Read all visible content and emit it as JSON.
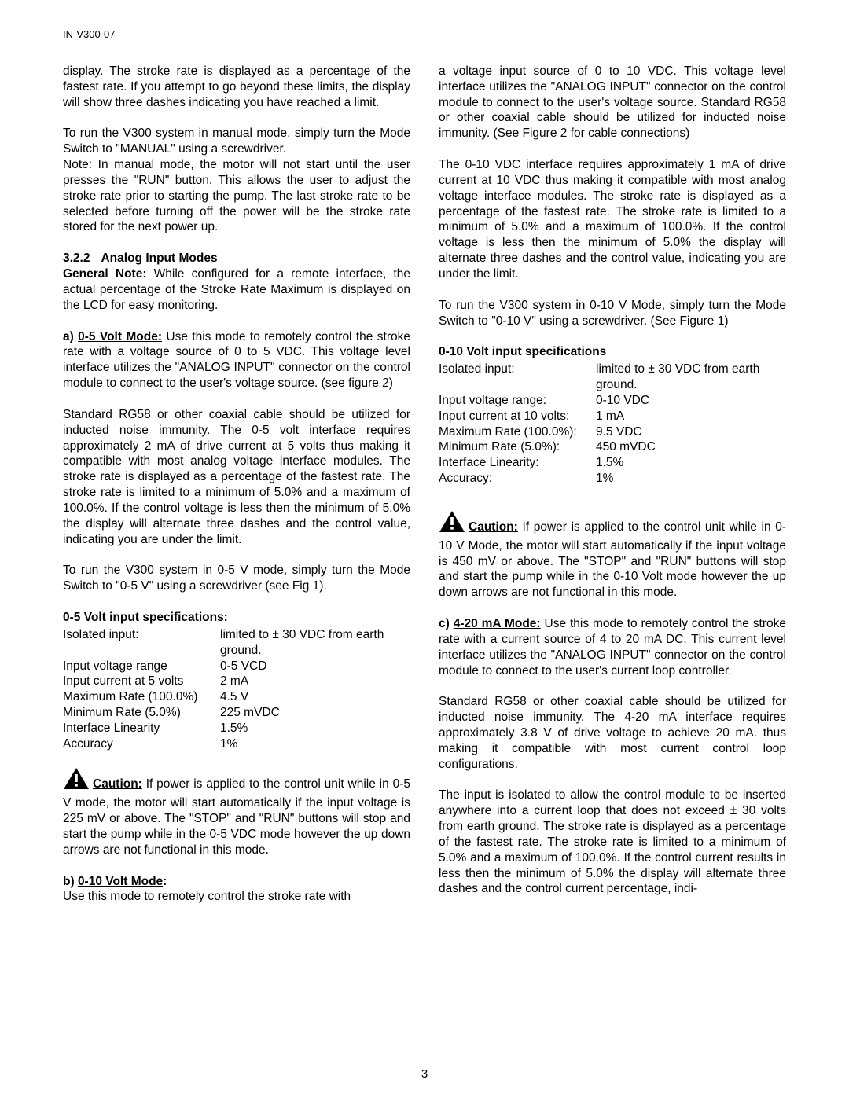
{
  "docId": "IN-V300-07",
  "pageNumber": "3",
  "left": {
    "p1": "display.  The stroke rate is displayed as a percentage of the fastest rate.  If you attempt to go beyond these limits, the display will show three dashes indicating you have reached a limit.",
    "p2": "To run the V300 system in manual mode, simply turn the Mode Switch to \"MANUAL\" using a screwdriver.",
    "p3": "Note: In manual mode, the motor will not start until the user presses the \"RUN\" button.  This allows the user to adjust the stroke rate prior to starting the pump.  The last stroke rate to be selected before turning off the power will be the stroke rate stored for the next power up.",
    "secNum": "3.2.2",
    "secTitle": "Analog Input Modes",
    "generalLabel": "General Note:",
    "generalText": "  While configured for a remote interface, the actual percentage of the Stroke Rate Maximum is displayed on the LCD for easy monitoring.",
    "aLabel": "a) ",
    "aMode": "0-5 Volt Mode:",
    "aText": " Use this mode  to remotely control the stroke rate with a voltage source of 0 to 5 VDC.  This voltage level interface utilizes the \"ANALOG INPUT\" connector on the control module to connect to the user's voltage source. (see figure 2)",
    "p4": "Standard RG58 or other coaxial cable should be utilized for inducted noise immunity.  The 0-5 volt interface requires approximately 2 mA of drive current at 5 volts thus making it compatible with most analog voltage interface modules.  The stroke rate is displayed as a percentage of the fastest rate.  The stroke rate is limited to a minimum of 5.0% and a maximum of 100.0%.  If the control voltage is less then the minimum of 5.0% the display will alternate three dashes and the control value, indicating you are under the limit.",
    "p5": "To run the V300 system in 0-5 V mode, simply turn the Mode Switch to \"0-5 V\" using a screwdriver (see Fig 1).",
    "spec5Title": "0-5 Volt input specifications:",
    "spec5": [
      {
        "l": "Isolated input:",
        "v": "limited to ± 30 VDC from earth ground."
      },
      {
        "l": "Input voltage range",
        "v": "0-5 VCD"
      },
      {
        "l": "Input current at 5 volts",
        "v": "2 mA"
      },
      {
        "l": "Maximum Rate (100.0%)",
        "v": "4.5 V"
      },
      {
        "l": "Minimum Rate (5.0%)",
        "v": "225 mVDC"
      },
      {
        "l": "Interface Linearity",
        "v": "1.5%"
      },
      {
        "l": "Accuracy",
        "v": "1%"
      }
    ],
    "caution1Label": "Caution:",
    "caution1Text": "   If power is applied to the control unit while in 0-5 V mode, the motor will start automatically if the input voltage is 225 mV or above. The \"STOP\" and \"RUN\" buttons will stop and start the pump while in the 0-5 VDC mode however the up down arrows are not functional in this mode.",
    "bLabel": "b) ",
    "bMode": "0-10 Volt Mode",
    "bColon": ":",
    "bText": "Use this mode  to remotely control the stroke rate with"
  },
  "right": {
    "p1": "a voltage input source of 0 to 10 VDC. This voltage level interface utilizes the \"ANALOG INPUT\" connector on the control module to connect to the user's voltage source.  Standard RG58 or other coaxial cable should be utilized for inducted noise immunity. (See Figure 2 for cable connections)",
    "p2": "The 0-10 VDC interface requires approximately 1 mA of drive current at 10 VDC thus making it compatible with most analog voltage interface modules.   The stroke rate is displayed as a percentage of the fastest rate.  The stroke rate is limited to a minimum of 5.0% and a maximum of 100.0%.    If the control voltage is less then the minimum of 5.0% the display will alternate three dashes and the control value, indicating you are under the limit.",
    "p3": "To run the V300 system in 0-10 V Mode, simply turn the Mode Switch to \"0-10 V\" using a screwdriver. (See Figure 1)",
    "spec10Title": "0-10 Volt input specifications",
    "spec10": [
      {
        "l": "Isolated input:",
        "v": "limited to ± 30 VDC from earth ground."
      },
      {
        "l": "Input voltage range:",
        "v": "0-10 VDC"
      },
      {
        "l": "Input current at 10 volts:",
        "v": "1 mA"
      },
      {
        "l": "Maximum Rate (100.0%):",
        "v": " 9.5 VDC"
      },
      {
        "l": "Minimum Rate (5.0%):",
        "v": " 450 mVDC"
      },
      {
        "l": "Interface Linearity:",
        "v": "1.5%"
      },
      {
        "l": "Accuracy:",
        "v": "1%"
      }
    ],
    "caution2Label": "Caution:",
    "caution2Text": " If power is applied to the control unit while in 0-10 V Mode, the motor will start automatically if the input voltage is 450 mV or above.  The \"STOP\" and \"RUN\" buttons will stop and start the pump while in the 0-10 Volt mode however the up down arrows are not functional in this mode.",
    "cLabel": "c) ",
    "cMode": "4-20 mA Mode:",
    "cText": " Use this mode to remotely control the stroke rate with a current source of 4 to 20 mA DC.  This current level interface utilizes the \"ANALOG INPUT\" connector on the control module to connect to the user's current loop controller.",
    "p4": "Standard RG58 or other coaxial cable should be utilized for inducted noise immunity.  The 4-20 mA interface requires approximately 3.8 V of drive voltage to achieve 20 mA. thus making it compatible with most current control loop configurations.",
    "p5": "The input is isolated to allow the control module to be inserted anywhere into a current loop that does not exceed ± 30 volts from earth ground.  The stroke rate is displayed as a percentage of the fastest rate.  The stroke rate is limited to a minimum of 5.0% and a maximum of 100.0%. If the control current results in less then the minimum of 5.0% the display will alternate three dashes and the control current percentage, indi-"
  }
}
